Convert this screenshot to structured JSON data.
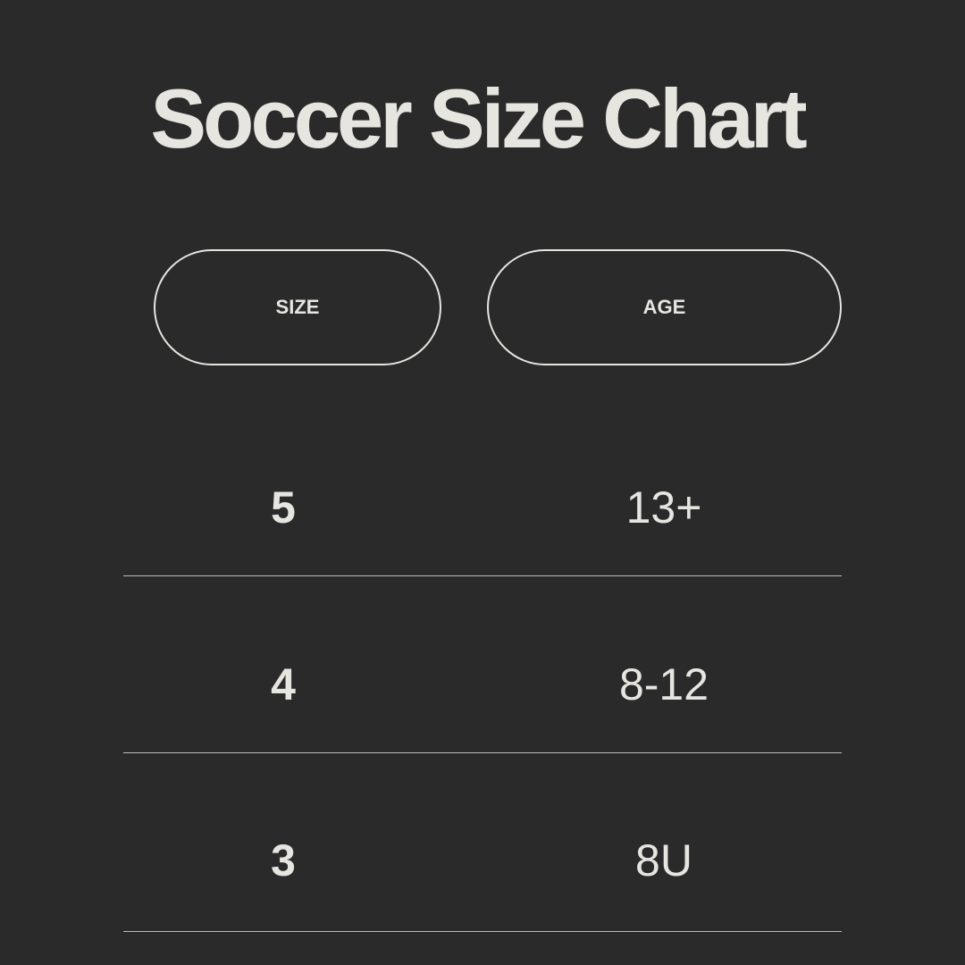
{
  "title": "Soccer Size Chart",
  "headers": {
    "size": "SIZE",
    "age": "AGE"
  },
  "rows": [
    {
      "size": "5",
      "age": "13+"
    },
    {
      "size": "4",
      "age": "8-12"
    },
    {
      "size": "3",
      "age": "8U"
    }
  ],
  "colors": {
    "background": "#2a2a2a",
    "text": "#e6e5e0"
  }
}
